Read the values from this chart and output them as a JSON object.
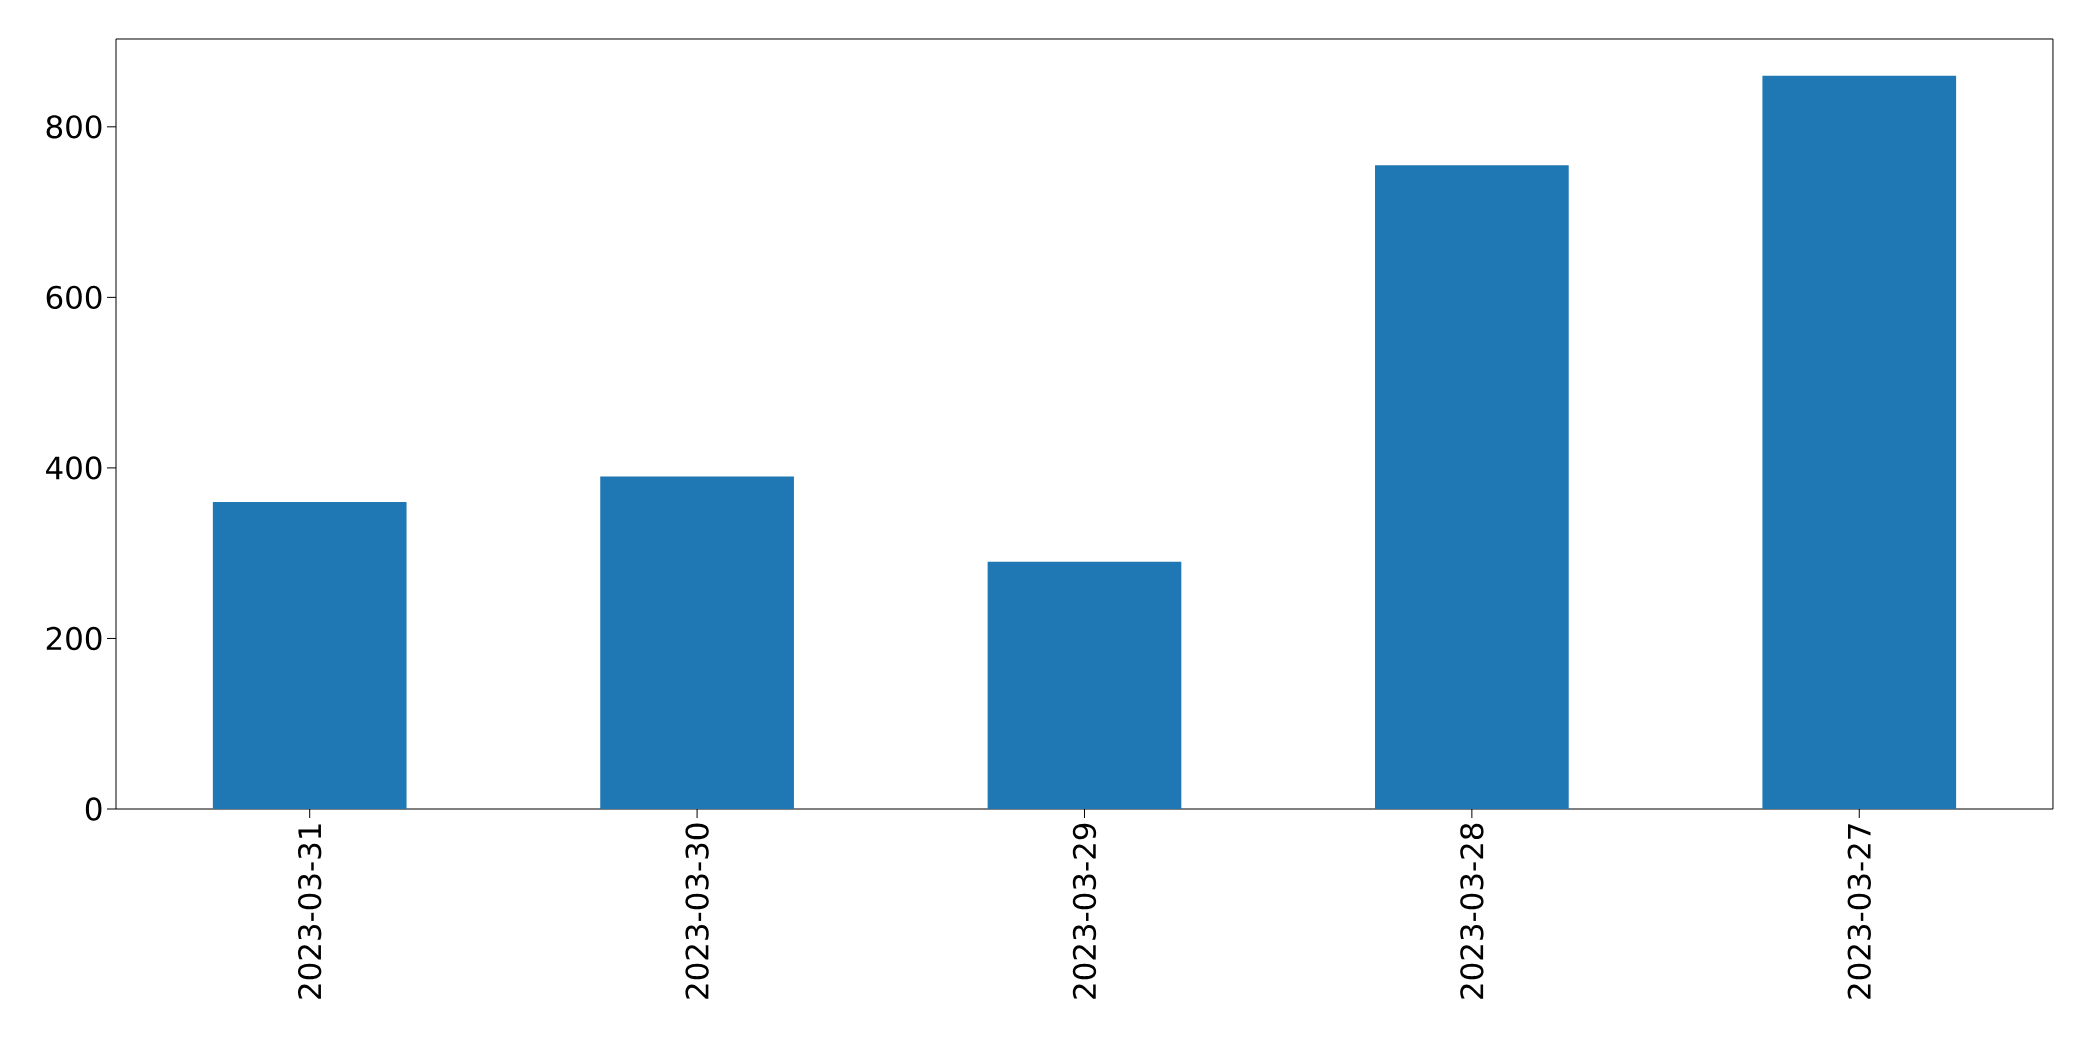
{
  "chart_data": {
    "type": "bar",
    "categories": [
      "2023-03-31",
      "2023-03-30",
      "2023-03-29",
      "2023-03-28",
      "2023-03-27"
    ],
    "values": [
      360,
      390,
      290,
      755,
      860
    ],
    "color": "#1f77b4",
    "ylim": [
      0,
      903
    ],
    "yticks": [
      0,
      200,
      400,
      600,
      800
    ]
  }
}
